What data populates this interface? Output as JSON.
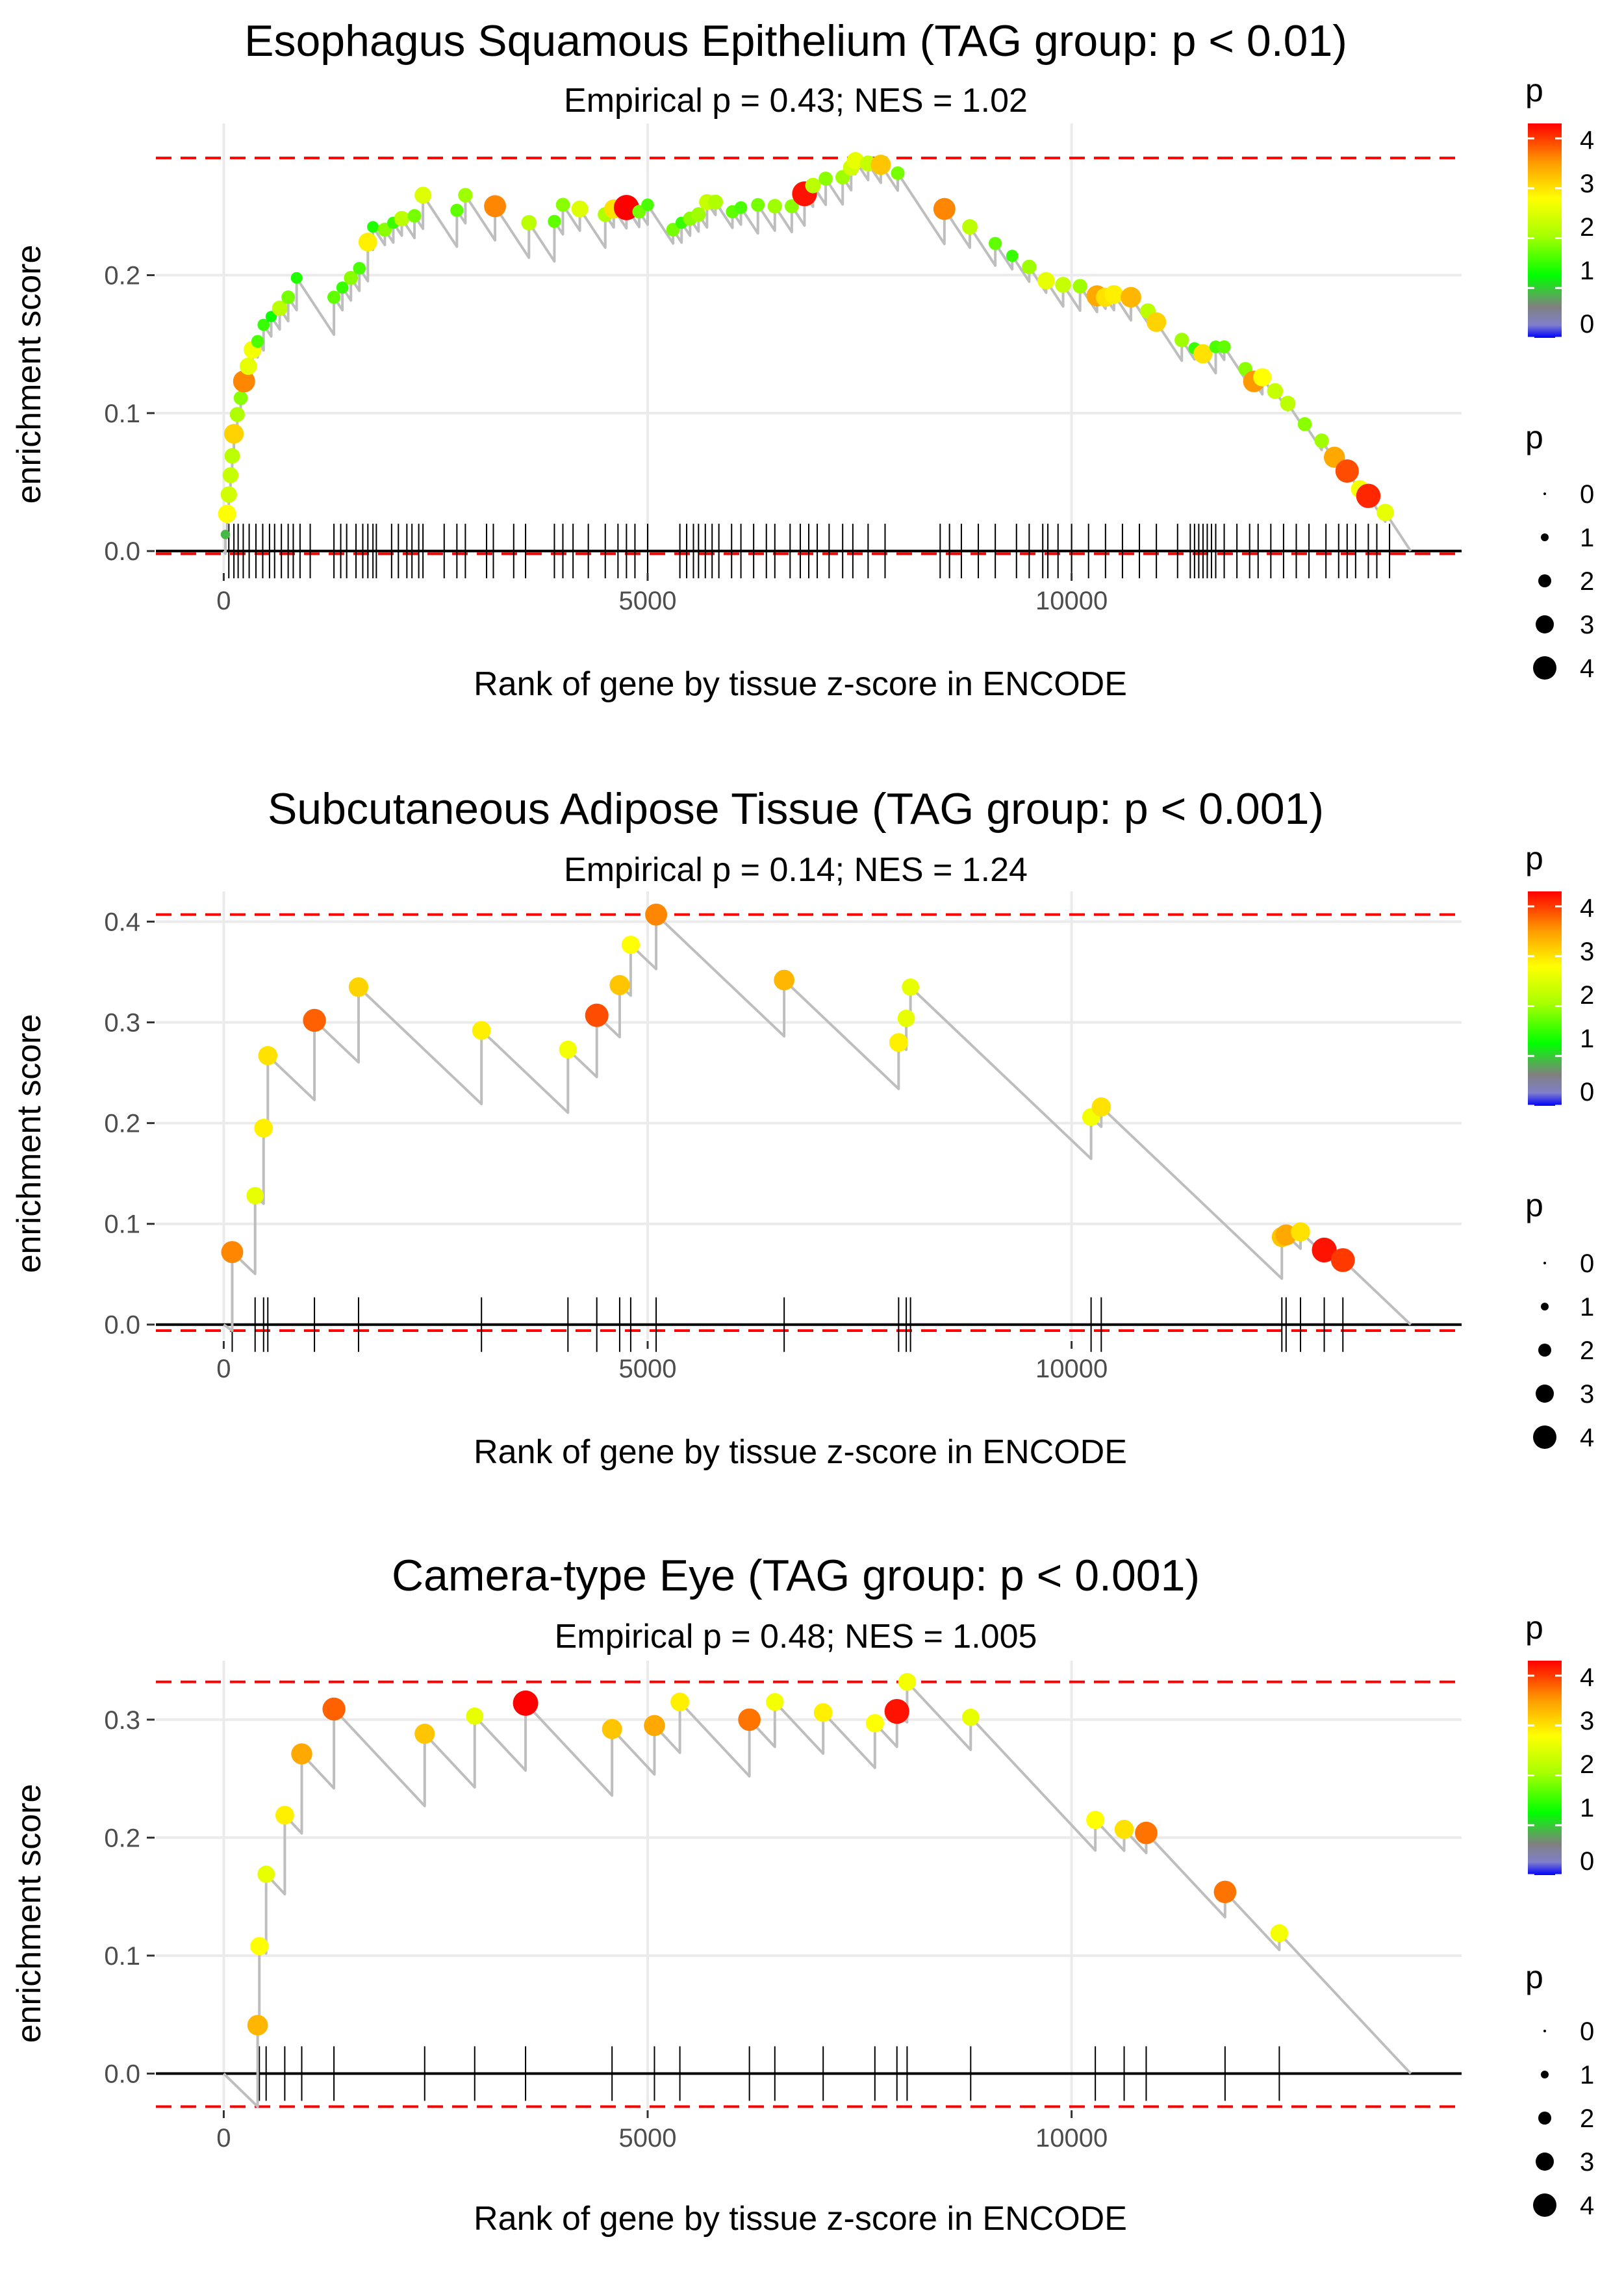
{
  "colors": {
    "ref_line": "#FF0000",
    "curve": "#BEBEBE",
    "grid": "#EBEBEB",
    "zero_line": "#000000",
    "tick_mark": "#000000",
    "tick_label": "#4D4D4D",
    "low": "#0000FF",
    "gradient": [
      "#0000FF",
      "#808080",
      "#00FF00",
      "#FFFF00",
      "#FF0000"
    ]
  },
  "chart_data": [
    {
      "type": "scatter",
      "title": "Esophagus Squamous Epithelium (TAG group: p < 0.01)",
      "subtitle": "Empirical p = 0.43; NES = 1.02",
      "xlabel": "Rank of gene by tissue z-score in ENCODE",
      "ylabel": "enrichment score",
      "xlim": [
        -800,
        14600
      ],
      "ylim": [
        -0.015,
        0.31
      ],
      "xticks": [
        0,
        5000,
        10000
      ],
      "xtick_labels": [
        "0",
        "5000",
        "10000"
      ],
      "yticks": [
        0.0,
        0.1,
        0.2
      ],
      "ytick_labels": [
        "0.0",
        "0.1",
        "0.2"
      ],
      "max_es": 0.285,
      "min_es": -0.002,
      "end_rank": 14000,
      "points": [
        [
          20,
          0.012,
          0.9
        ],
        [
          40,
          0.027,
          2.8
        ],
        [
          60,
          0.041,
          2.4
        ],
        [
          80,
          0.055,
          2.3
        ],
        [
          100,
          0.069,
          2.2
        ],
        [
          120,
          0.085,
          3.1
        ],
        [
          160,
          0.099,
          2.1
        ],
        [
          200,
          0.111,
          1.9
        ],
        [
          240,
          0.123,
          3.6
        ],
        [
          290,
          0.134,
          2.6
        ],
        [
          340,
          0.146,
          2.7
        ],
        [
          400,
          0.152,
          1.6
        ],
        [
          470,
          0.164,
          1.5
        ],
        [
          560,
          0.17,
          1.3
        ],
        [
          660,
          0.176,
          2.2
        ],
        [
          760,
          0.184,
          1.8
        ],
        [
          860,
          0.198,
          1.4
        ],
        [
          1300,
          0.184,
          1.7
        ],
        [
          1400,
          0.191,
          1.5
        ],
        [
          1500,
          0.198,
          1.9
        ],
        [
          1600,
          0.205,
          1.6
        ],
        [
          1700,
          0.224,
          2.9
        ],
        [
          1760,
          0.235,
          1.4
        ],
        [
          1900,
          0.233,
          1.9
        ],
        [
          2000,
          0.238,
          1.5
        ],
        [
          2100,
          0.241,
          2.2
        ],
        [
          2250,
          0.243,
          1.8
        ],
        [
          2350,
          0.258,
          2.5
        ],
        [
          2750,
          0.247,
          1.7
        ],
        [
          2850,
          0.258,
          2.0
        ],
        [
          3200,
          0.25,
          3.6
        ],
        [
          3600,
          0.238,
          2.2
        ],
        [
          3900,
          0.239,
          1.7
        ],
        [
          4000,
          0.251,
          1.9
        ],
        [
          4200,
          0.248,
          2.5
        ],
        [
          4500,
          0.244,
          2.1
        ],
        [
          4600,
          0.248,
          3.0
        ],
        [
          4750,
          0.249,
          4.3
        ],
        [
          4900,
          0.246,
          1.8
        ],
        [
          5000,
          0.251,
          1.6
        ],
        [
          5300,
          0.233,
          1.8
        ],
        [
          5400,
          0.238,
          1.5
        ],
        [
          5500,
          0.241,
          1.9
        ],
        [
          5600,
          0.244,
          2.0
        ],
        [
          5700,
          0.253,
          2.3
        ],
        [
          5800,
          0.253,
          2.1
        ],
        [
          6000,
          0.246,
          1.7
        ],
        [
          6100,
          0.249,
          1.6
        ],
        [
          6300,
          0.251,
          1.8
        ],
        [
          6500,
          0.25,
          2.0
        ],
        [
          6700,
          0.25,
          1.9
        ],
        [
          6850,
          0.259,
          4.2
        ],
        [
          6950,
          0.265,
          2.2
        ],
        [
          7100,
          0.27,
          1.9
        ],
        [
          7300,
          0.271,
          2.0
        ],
        [
          7400,
          0.278,
          2.4
        ],
        [
          7450,
          0.283,
          2.6
        ],
        [
          7600,
          0.281,
          2.3
        ],
        [
          7750,
          0.28,
          3.2
        ],
        [
          7950,
          0.274,
          1.8
        ],
        [
          8500,
          0.248,
          3.6
        ],
        [
          8800,
          0.235,
          2.2
        ],
        [
          9100,
          0.223,
          1.7
        ],
        [
          9300,
          0.214,
          1.5
        ],
        [
          9500,
          0.206,
          2.0
        ],
        [
          9700,
          0.196,
          2.6
        ],
        [
          9900,
          0.193,
          2.3
        ],
        [
          10100,
          0.192,
          2.0
        ],
        [
          10300,
          0.185,
          3.4
        ],
        [
          10400,
          0.184,
          3.0
        ],
        [
          10500,
          0.186,
          2.9
        ],
        [
          10700,
          0.184,
          3.3
        ],
        [
          10900,
          0.174,
          2.2
        ],
        [
          11000,
          0.166,
          3.1
        ],
        [
          11300,
          0.153,
          2.0
        ],
        [
          11450,
          0.147,
          1.5
        ],
        [
          11550,
          0.143,
          3.0
        ],
        [
          11700,
          0.148,
          1.6
        ],
        [
          11800,
          0.148,
          1.7
        ],
        [
          12050,
          0.132,
          1.9
        ],
        [
          12150,
          0.123,
          3.5
        ],
        [
          12250,
          0.126,
          2.8
        ],
        [
          12400,
          0.116,
          2.3
        ],
        [
          12550,
          0.107,
          2.2
        ],
        [
          12750,
          0.092,
          1.9
        ],
        [
          12950,
          0.08,
          2.0
        ],
        [
          13100,
          0.068,
          3.4
        ],
        [
          13250,
          0.058,
          3.9
        ],
        [
          13400,
          0.045,
          2.7
        ],
        [
          13500,
          0.04,
          4.1
        ],
        [
          13700,
          0.028,
          2.6
        ]
      ],
      "rug": [
        60,
        120,
        170,
        230,
        300,
        380,
        460,
        540,
        600,
        680,
        760,
        820,
        900,
        1020,
        1300,
        1380,
        1450,
        1560,
        1640,
        1700,
        1760,
        1800,
        1980,
        2060,
        2160,
        2220,
        2300,
        2350,
        2600,
        2750,
        2850,
        3100,
        3180,
        3420,
        3560,
        3900,
        4000,
        4120,
        4300,
        4500,
        4650,
        4750,
        4850,
        5000,
        5380,
        5460,
        5540,
        5600,
        5680,
        5760,
        5840,
        5990,
        6100,
        6250,
        6400,
        6500,
        6680,
        6800,
        6900,
        7000,
        7140,
        7300,
        7420,
        7600,
        7800,
        8450,
        8560,
        8700,
        8900,
        9100,
        9350,
        9500,
        9660,
        9720,
        9840,
        10000,
        10200,
        10400,
        10600,
        10800,
        11000,
        11250,
        11400,
        11450,
        11500,
        11550,
        11600,
        11650,
        11700,
        11800,
        11950,
        12100,
        12200,
        12350,
        12500,
        12650,
        12800,
        13000,
        13150,
        13250,
        13350,
        13500,
        13600,
        13750
      ],
      "legend": {
        "color_title": "p",
        "color_ticks": [
          "4",
          "3",
          "2",
          "1",
          "0"
        ],
        "size_title": "p",
        "size_labels": [
          "0",
          "1",
          "2",
          "3",
          "4"
        ]
      }
    },
    {
      "type": "scatter",
      "title": "Subcutaneous Adipose Tissue (TAG group: p < 0.001)",
      "subtitle": "Empirical p = 0.14; NES = 1.24",
      "xlabel": "Rank of gene by tissue z-score in ENCODE",
      "ylabel": "enrichment score",
      "xlim": [
        -800,
        14600
      ],
      "ylim": [
        -0.015,
        0.43
      ],
      "xticks": [
        0,
        5000,
        10000
      ],
      "xtick_labels": [
        "0",
        "5000",
        "10000"
      ],
      "yticks": [
        0.0,
        0.1,
        0.2,
        0.3,
        0.4
      ],
      "ytick_labels": [
        "0.0",
        "0.1",
        "0.2",
        "0.3",
        "0.4"
      ],
      "max_es": 0.407,
      "min_es": -0.006,
      "end_rank": 14000,
      "points": [
        [
          100,
          0.072,
          3.6
        ],
        [
          370,
          0.128,
          2.6
        ],
        [
          470,
          0.195,
          2.9
        ],
        [
          520,
          0.267,
          3.0
        ],
        [
          1070,
          0.302,
          3.8
        ],
        [
          1590,
          0.335,
          3.1
        ],
        [
          3040,
          0.292,
          2.9
        ],
        [
          4060,
          0.273,
          2.7
        ],
        [
          4400,
          0.307,
          3.9
        ],
        [
          4670,
          0.337,
          3.2
        ],
        [
          4800,
          0.377,
          2.8
        ],
        [
          5100,
          0.407,
          3.6
        ],
        [
          6610,
          0.342,
          3.3
        ],
        [
          7960,
          0.28,
          2.9
        ],
        [
          8050,
          0.304,
          2.6
        ],
        [
          8100,
          0.335,
          2.6
        ],
        [
          10230,
          0.206,
          2.7
        ],
        [
          10350,
          0.216,
          3.0
        ],
        [
          12480,
          0.087,
          3.2
        ],
        [
          12530,
          0.089,
          3.4
        ],
        [
          12700,
          0.092,
          3.0
        ],
        [
          12980,
          0.074,
          4.2
        ],
        [
          13200,
          0.064,
          4.0
        ]
      ],
      "rug": [
        100,
        370,
        470,
        520,
        1070,
        1590,
        3040,
        4060,
        4400,
        4670,
        4800,
        5100,
        6610,
        7960,
        8050,
        8100,
        10230,
        10350,
        12480,
        12530,
        12700,
        12980,
        13200
      ],
      "legend": {
        "color_title": "p",
        "color_ticks": [
          "4",
          "3",
          "2",
          "1",
          "0"
        ],
        "size_title": "p",
        "size_labels": [
          "0",
          "1",
          "2",
          "3",
          "4"
        ]
      }
    },
    {
      "type": "scatter",
      "title": "Camera-type Eye (TAG group: p < 0.001)",
      "subtitle": "Empirical p = 0.48; NES = 1.005",
      "xlabel": "Rank of gene by tissue z-score in ENCODE",
      "ylabel": "enrichment score",
      "xlim": [
        -800,
        14600
      ],
      "ylim": [
        -0.03,
        0.35
      ],
      "xticks": [
        0,
        5000,
        10000
      ],
      "xtick_labels": [
        "0",
        "5000",
        "10000"
      ],
      "yticks": [
        0.0,
        0.1,
        0.2,
        0.3
      ],
      "ytick_labels": [
        "0.0",
        "0.1",
        "0.2",
        "0.3"
      ],
      "max_es": 0.332,
      "min_es": -0.028,
      "end_rank": 14000,
      "points": [
        [
          400,
          0.041,
          3.3
        ],
        [
          420,
          0.108,
          2.8
        ],
        [
          500,
          0.169,
          2.6
        ],
        [
          720,
          0.219,
          2.9
        ],
        [
          920,
          0.271,
          3.4
        ],
        [
          1300,
          0.309,
          3.8
        ],
        [
          2370,
          0.288,
          3.2
        ],
        [
          2960,
          0.303,
          2.6
        ],
        [
          3560,
          0.314,
          4.3
        ],
        [
          4580,
          0.292,
          3.2
        ],
        [
          5080,
          0.295,
          3.4
        ],
        [
          5380,
          0.315,
          2.9
        ],
        [
          6200,
          0.3,
          3.7
        ],
        [
          6500,
          0.315,
          2.7
        ],
        [
          7070,
          0.306,
          2.9
        ],
        [
          7680,
          0.297,
          2.8
        ],
        [
          7940,
          0.307,
          4.2
        ],
        [
          8060,
          0.332,
          2.7
        ],
        [
          8810,
          0.302,
          2.6
        ],
        [
          10280,
          0.215,
          2.8
        ],
        [
          10620,
          0.207,
          3.0
        ],
        [
          10880,
          0.204,
          3.7
        ],
        [
          11810,
          0.154,
          3.7
        ],
        [
          12450,
          0.119,
          2.7
        ]
      ],
      "rug": [
        400,
        420,
        500,
        720,
        920,
        1300,
        2370,
        2960,
        3560,
        4580,
        5080,
        5380,
        6200,
        6500,
        7070,
        7680,
        7940,
        8060,
        8810,
        10280,
        10620,
        10880,
        11810,
        12450
      ],
      "legend": {
        "color_title": "p",
        "color_ticks": [
          "4",
          "3",
          "2",
          "1",
          "0"
        ],
        "size_title": "p",
        "size_labels": [
          "0",
          "1",
          "2",
          "3",
          "4"
        ]
      }
    }
  ]
}
